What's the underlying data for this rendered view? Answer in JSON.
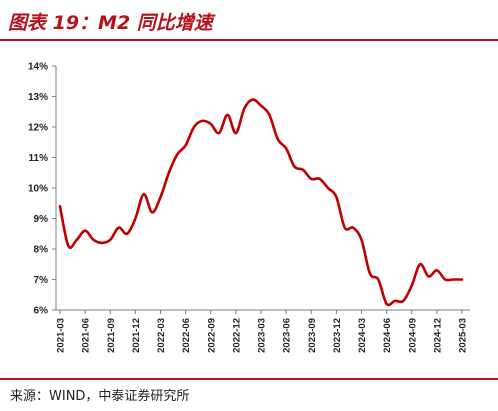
{
  "title": "图表 19：M2 同比增速",
  "source": "来源：WIND，中泰证券研究所",
  "colors": {
    "accent": "#b5121b",
    "line": "#c00000",
    "axis": "#7f7f7f"
  },
  "chart_data": {
    "type": "line",
    "title": "图表 19：M2 同比增速",
    "xlabel": "",
    "ylabel": "",
    "ylim": [
      6,
      14
    ],
    "y_ticks": [
      "6%",
      "7%",
      "8%",
      "9%",
      "10%",
      "11%",
      "12%",
      "13%",
      "14%"
    ],
    "x_ticks": [
      "2021-03",
      "2021-06",
      "2021-09",
      "2021-12",
      "2022-03",
      "2022-06",
      "2022-09",
      "2022-12",
      "2023-03",
      "2023-06",
      "2023-09",
      "2023-12",
      "2024-03",
      "2024-06",
      "2024-09",
      "2024-12",
      "2025-03"
    ],
    "x": [
      "2021-03",
      "2021-04",
      "2021-05",
      "2021-06",
      "2021-07",
      "2021-08",
      "2021-09",
      "2021-10",
      "2021-11",
      "2021-12",
      "2022-01",
      "2022-02",
      "2022-03",
      "2022-04",
      "2022-05",
      "2022-06",
      "2022-07",
      "2022-08",
      "2022-09",
      "2022-10",
      "2022-11",
      "2022-12",
      "2023-01",
      "2023-02",
      "2023-03",
      "2023-04",
      "2023-05",
      "2023-06",
      "2023-07",
      "2023-08",
      "2023-09",
      "2023-10",
      "2023-11",
      "2023-12",
      "2024-01",
      "2024-02",
      "2024-03",
      "2024-04",
      "2024-05",
      "2024-06",
      "2024-07",
      "2024-08",
      "2024-09",
      "2024-10",
      "2024-11",
      "2024-12",
      "2025-01",
      "2025-02",
      "2025-03"
    ],
    "series": [
      {
        "values": [
          9.4,
          8.1,
          8.3,
          8.6,
          8.3,
          8.2,
          8.3,
          8.7,
          8.5,
          9.0,
          9.8,
          9.2,
          9.7,
          10.5,
          11.1,
          11.4,
          12.0,
          12.2,
          12.1,
          11.8,
          12.4,
          11.8,
          12.6,
          12.9,
          12.7,
          12.4,
          11.6,
          11.3,
          10.7,
          10.6,
          10.3,
          10.3,
          10.0,
          9.7,
          8.7,
          8.7,
          8.3,
          7.2,
          7.0,
          6.2,
          6.3,
          6.3,
          6.8,
          7.5,
          7.1,
          7.3,
          7.0,
          7.0,
          7.0
        ]
      }
    ],
    "grid": false,
    "legend": "none"
  }
}
